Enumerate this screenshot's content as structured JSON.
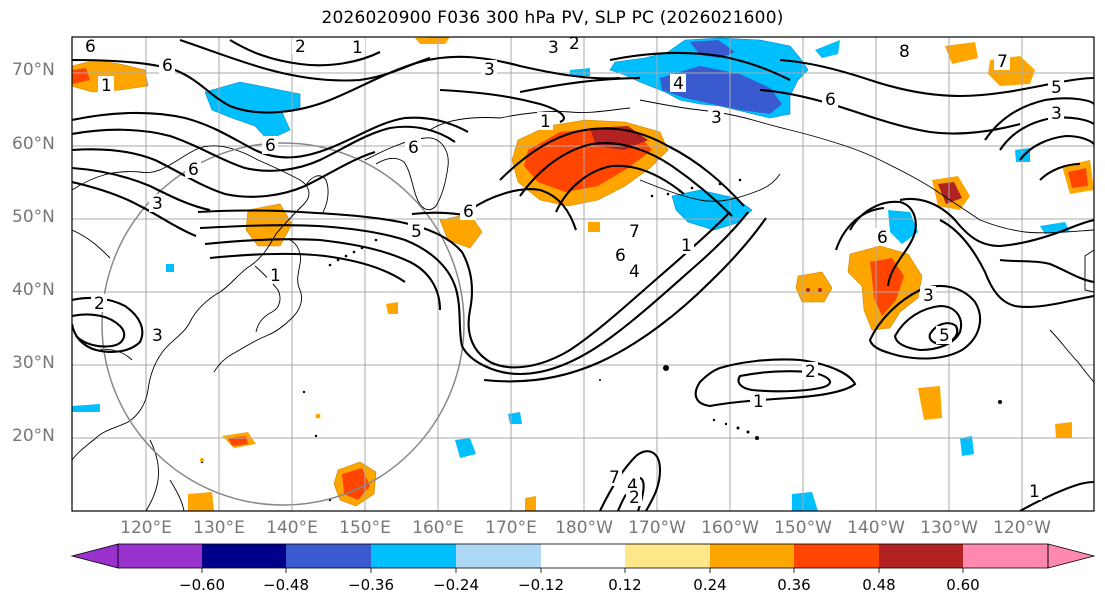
{
  "title": "2026020900 F036 300 hPa PV, SLP PC (2026021600)",
  "latitude_labels": [
    "70°N",
    "60°N",
    "50°N",
    "40°N",
    "30°N",
    "20°N"
  ],
  "longitude_labels": [
    "120°E",
    "130°E",
    "140°E",
    "150°E",
    "160°E",
    "170°E",
    "180°W",
    "170°W",
    "160°W",
    "150°W",
    "140°W",
    "130°W",
    "120°W"
  ],
  "colorbar": {
    "ticks": [
      "−0.60",
      "−0.48",
      "−0.36",
      "−0.24",
      "−0.12",
      "0.12",
      "0.24",
      "0.36",
      "0.48",
      "0.60"
    ],
    "colors": [
      "#9932cc",
      "#00008b",
      "#3a5bd0",
      "#00bfff",
      "#add8f6",
      "#ffffff",
      "#ffe88a",
      "#ffa500",
      "#ff4500",
      "#b22222",
      "#ff88b0"
    ]
  },
  "contour_labels": [
    "1",
    "2",
    "3",
    "4",
    "5",
    "6",
    "7",
    "8"
  ],
  "fill_colors": {
    "neg_light": "#00bfff",
    "neg_mid": "#3a5bd0",
    "pos_light": "#ffa500",
    "pos_mid": "#ff4500",
    "pos_strong": "#b22222"
  }
}
